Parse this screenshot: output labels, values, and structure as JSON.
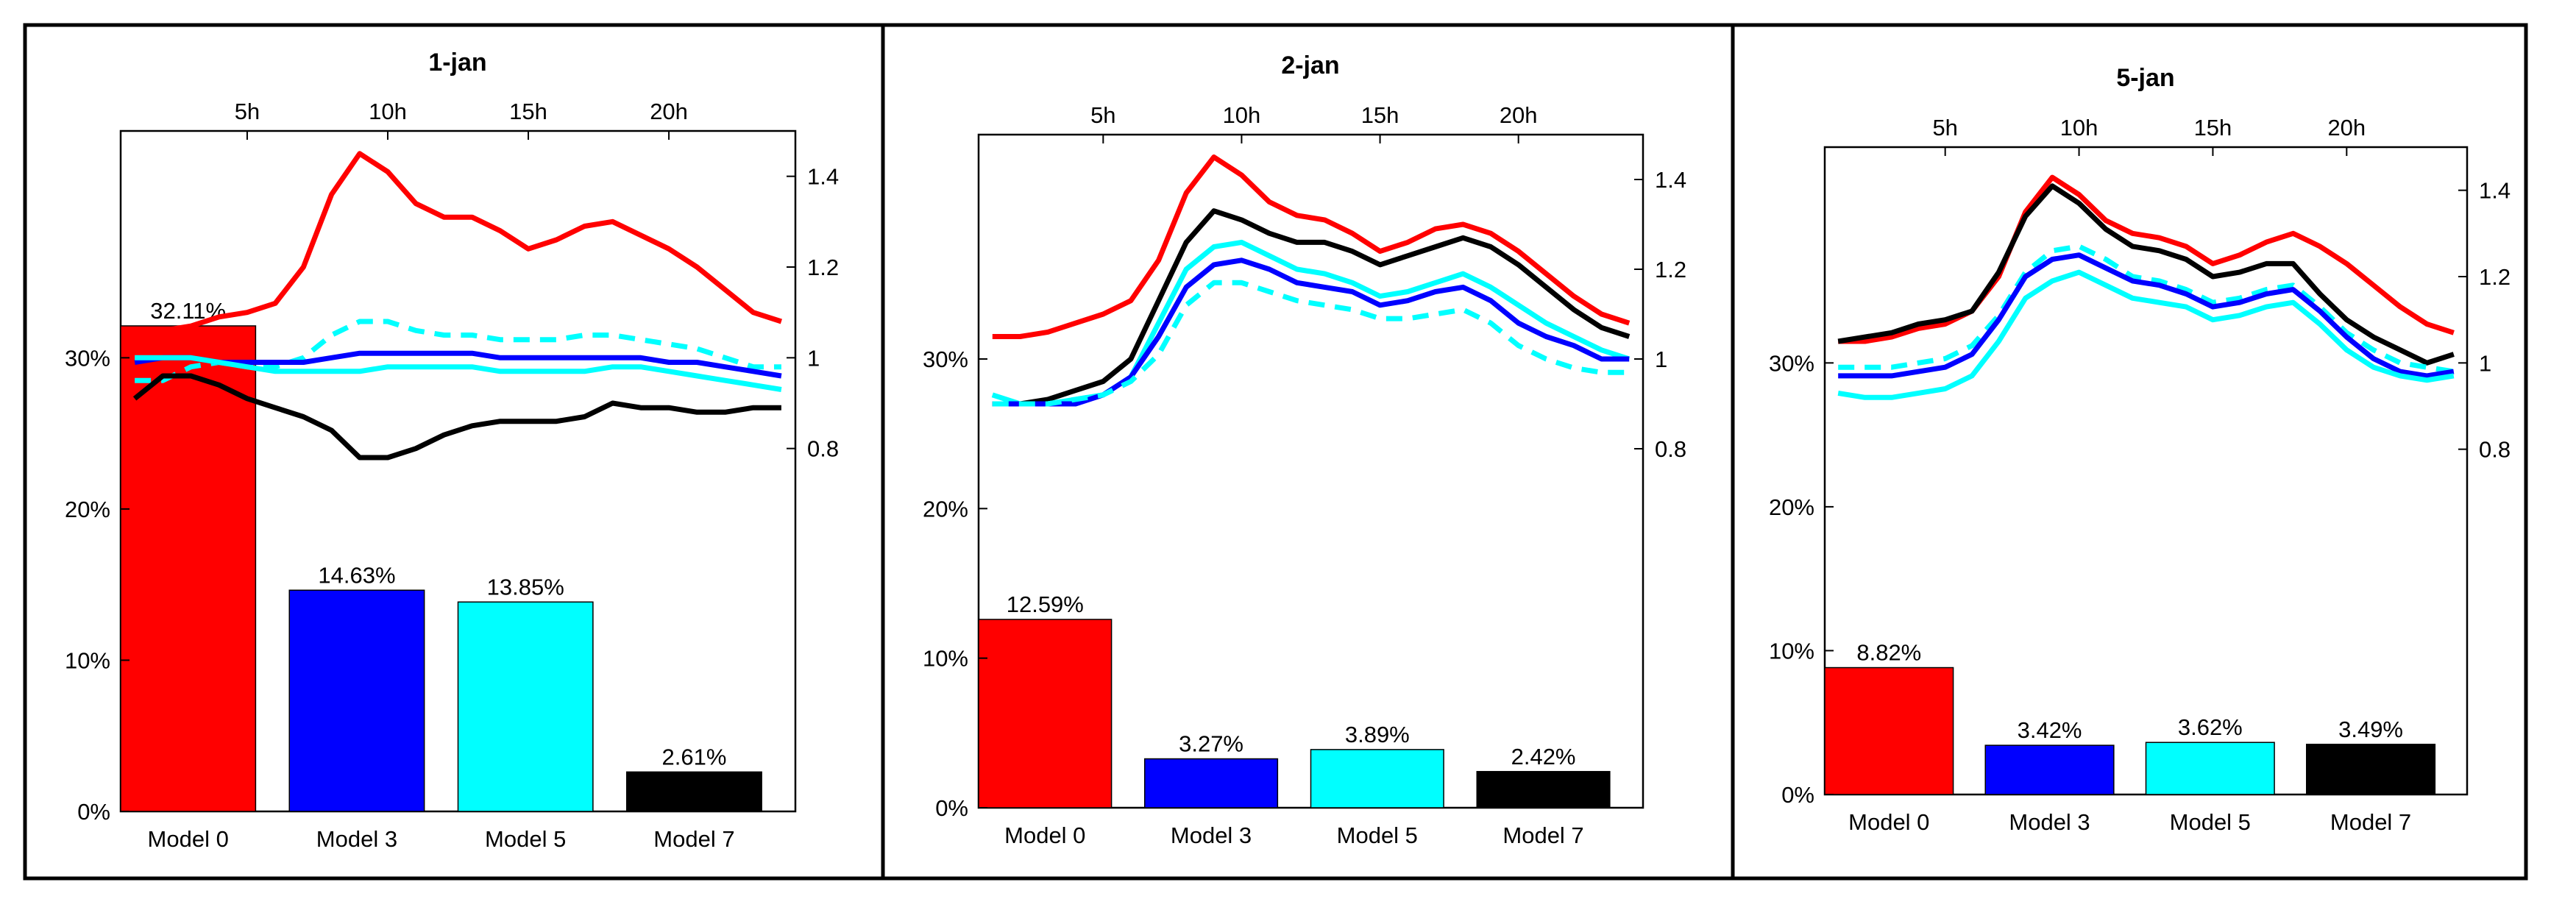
{
  "chart_data": [
    {
      "type": "bar",
      "title": "1-jan",
      "categories": [
        "Model 0",
        "Model 3",
        "Model 5",
        "Model 7"
      ],
      "values": [
        32.11,
        14.63,
        13.85,
        2.61
      ],
      "value_labels": [
        "32.11%",
        "14.63%",
        "13.85%",
        "2.61%"
      ],
      "bar_colors": [
        "#ff0000",
        "#0000ff",
        "#00ffff",
        "#000000"
      ],
      "ylim": [
        0,
        45
      ],
      "yticks": [
        0,
        10,
        20,
        30
      ],
      "ytick_labels": [
        "0%",
        "10%",
        "20%",
        "30%"
      ],
      "overlay": {
        "type": "line",
        "x": [
          1,
          2,
          3,
          4,
          5,
          6,
          7,
          8,
          9,
          10,
          11,
          12,
          13,
          14,
          15,
          16,
          17,
          18,
          19,
          20,
          21,
          22,
          23,
          24
        ],
        "ylim": [
          0,
          1.5
        ],
        "yticks": [
          0.8,
          1,
          1.2,
          1.4
        ],
        "ytick_labels": [
          "0.8",
          "1",
          "1.2",
          "1.4"
        ],
        "xticks": [
          5,
          10,
          15,
          20
        ],
        "xtick_labels": [
          "5h",
          "10h",
          "15h",
          "20h"
        ],
        "series": [
          {
            "color": "#ff0000",
            "style": "solid",
            "values": [
              1.06,
              1.06,
              1.07,
              1.09,
              1.1,
              1.12,
              1.2,
              1.36,
              1.45,
              1.41,
              1.34,
              1.31,
              1.31,
              1.28,
              1.24,
              1.26,
              1.29,
              1.3,
              1.27,
              1.24,
              1.2,
              1.15,
              1.1,
              1.08
            ]
          },
          {
            "color": "#00ffff",
            "style": "dashed",
            "values": [
              0.95,
              0.95,
              0.98,
              0.99,
              0.98,
              0.98,
              1.0,
              1.05,
              1.08,
              1.08,
              1.06,
              1.05,
              1.05,
              1.04,
              1.04,
              1.04,
              1.05,
              1.05,
              1.04,
              1.03,
              1.02,
              1.0,
              0.98,
              0.98
            ]
          },
          {
            "color": "#0000ff",
            "style": "solid",
            "values": [
              0.99,
              1.0,
              1.0,
              0.99,
              0.99,
              0.99,
              0.99,
              1.0,
              1.01,
              1.01,
              1.01,
              1.01,
              1.01,
              1.0,
              1.0,
              1.0,
              1.0,
              1.0,
              1.0,
              0.99,
              0.99,
              0.98,
              0.97,
              0.96
            ]
          },
          {
            "color": "#00ffff",
            "style": "solid",
            "values": [
              1.0,
              1.0,
              1.0,
              0.99,
              0.98,
              0.97,
              0.97,
              0.97,
              0.97,
              0.98,
              0.98,
              0.98,
              0.98,
              0.97,
              0.97,
              0.97,
              0.97,
              0.98,
              0.98,
              0.97,
              0.96,
              0.95,
              0.94,
              0.93
            ]
          },
          {
            "color": "#000000",
            "style": "solid",
            "values": [
              0.91,
              0.96,
              0.96,
              0.94,
              0.91,
              0.89,
              0.87,
              0.84,
              0.78,
              0.78,
              0.8,
              0.83,
              0.85,
              0.86,
              0.86,
              0.86,
              0.87,
              0.9,
              0.89,
              0.89,
              0.88,
              0.88,
              0.89,
              0.89
            ]
          }
        ]
      }
    },
    {
      "type": "bar",
      "title": "2-jan",
      "categories": [
        "Model 0",
        "Model 3",
        "Model 5",
        "Model 7"
      ],
      "values": [
        12.59,
        3.27,
        3.89,
        2.42
      ],
      "value_labels": [
        "12.59%",
        "3.27%",
        "3.89%",
        "2.42%"
      ],
      "bar_colors": [
        "#ff0000",
        "#0000ff",
        "#00ffff",
        "#000000"
      ],
      "ylim": [
        0,
        45
      ],
      "yticks": [
        0,
        10,
        20,
        30
      ],
      "ytick_labels": [
        "0%",
        "10%",
        "20%",
        "30%"
      ],
      "overlay": {
        "type": "line",
        "x": [
          1,
          2,
          3,
          4,
          5,
          6,
          7,
          8,
          9,
          10,
          11,
          12,
          13,
          14,
          15,
          16,
          17,
          18,
          19,
          20,
          21,
          22,
          23,
          24
        ],
        "ylim": [
          0,
          1.5
        ],
        "yticks": [
          0.8,
          1,
          1.2,
          1.4
        ],
        "ytick_labels": [
          "0.8",
          "1",
          "1.2",
          "1.4"
        ],
        "xticks": [
          5,
          10,
          15,
          20
        ],
        "xtick_labels": [
          "5h",
          "10h",
          "15h",
          "20h"
        ],
        "series": [
          {
            "color": "#ff0000",
            "style": "solid",
            "values": [
              1.05,
              1.05,
              1.06,
              1.08,
              1.1,
              1.13,
              1.22,
              1.37,
              1.45,
              1.41,
              1.35,
              1.32,
              1.31,
              1.28,
              1.24,
              1.26,
              1.29,
              1.3,
              1.28,
              1.24,
              1.19,
              1.14,
              1.1,
              1.08
            ]
          },
          {
            "color": "#000000",
            "style": "solid",
            "values": [
              0.9,
              0.9,
              0.91,
              0.93,
              0.95,
              1.0,
              1.13,
              1.26,
              1.33,
              1.31,
              1.28,
              1.26,
              1.26,
              1.24,
              1.21,
              1.23,
              1.25,
              1.27,
              1.25,
              1.21,
              1.16,
              1.11,
              1.07,
              1.05
            ]
          },
          {
            "color": "#00ffff",
            "style": "solid",
            "values": [
              0.92,
              0.9,
              0.9,
              0.91,
              0.92,
              0.96,
              1.08,
              1.2,
              1.25,
              1.26,
              1.23,
              1.2,
              1.19,
              1.17,
              1.14,
              1.15,
              1.17,
              1.19,
              1.16,
              1.12,
              1.08,
              1.05,
              1.02,
              1.0
            ]
          },
          {
            "color": "#0000ff",
            "style": "solid",
            "values": [
              0.9,
              0.9,
              0.9,
              0.9,
              0.92,
              0.96,
              1.05,
              1.16,
              1.21,
              1.22,
              1.2,
              1.17,
              1.16,
              1.15,
              1.12,
              1.13,
              1.15,
              1.16,
              1.13,
              1.08,
              1.05,
              1.03,
              1.0,
              1.0
            ]
          },
          {
            "color": "#00ffff",
            "style": "dashed",
            "values": [
              0.9,
              0.9,
              0.9,
              0.91,
              0.92,
              0.95,
              1.01,
              1.12,
              1.17,
              1.17,
              1.15,
              1.13,
              1.12,
              1.11,
              1.09,
              1.09,
              1.1,
              1.11,
              1.08,
              1.03,
              1.0,
              0.98,
              0.97,
              0.97
            ]
          }
        ]
      }
    },
    {
      "type": "bar",
      "title": "5-jan",
      "categories": [
        "Model 0",
        "Model 3",
        "Model 5",
        "Model 7"
      ],
      "values": [
        8.82,
        3.42,
        3.62,
        3.49
      ],
      "value_labels": [
        "8.82%",
        "3.42%",
        "3.62%",
        "3.49%"
      ],
      "bar_colors": [
        "#ff0000",
        "#0000ff",
        "#00ffff",
        "#000000"
      ],
      "ylim": [
        0,
        45
      ],
      "yticks": [
        0,
        10,
        20,
        30
      ],
      "ytick_labels": [
        "0%",
        "10%",
        "20%",
        "30%"
      ],
      "overlay": {
        "type": "line",
        "x": [
          1,
          2,
          3,
          4,
          5,
          6,
          7,
          8,
          9,
          10,
          11,
          12,
          13,
          14,
          15,
          16,
          17,
          18,
          19,
          20,
          21,
          22,
          23,
          24
        ],
        "ylim": [
          0,
          1.5
        ],
        "yticks": [
          0.8,
          1,
          1.2,
          1.4
        ],
        "ytick_labels": [
          "0.8",
          "1",
          "1.2",
          "1.4"
        ],
        "xticks": [
          5,
          10,
          15,
          20
        ],
        "xtick_labels": [
          "5h",
          "10h",
          "15h",
          "20h"
        ],
        "series": [
          {
            "color": "#ff0000",
            "style": "solid",
            "values": [
              1.05,
              1.05,
              1.06,
              1.08,
              1.09,
              1.12,
              1.2,
              1.35,
              1.43,
              1.39,
              1.33,
              1.3,
              1.29,
              1.27,
              1.23,
              1.25,
              1.28,
              1.3,
              1.27,
              1.23,
              1.18,
              1.13,
              1.09,
              1.07
            ]
          },
          {
            "color": "#000000",
            "style": "solid",
            "values": [
              1.05,
              1.06,
              1.07,
              1.09,
              1.1,
              1.12,
              1.21,
              1.34,
              1.41,
              1.37,
              1.31,
              1.27,
              1.26,
              1.24,
              1.2,
              1.21,
              1.23,
              1.23,
              1.16,
              1.1,
              1.06,
              1.03,
              1.0,
              1.02
            ]
          },
          {
            "color": "#00ffff",
            "style": "dashed",
            "values": [
              0.99,
              0.99,
              0.99,
              1.0,
              1.01,
              1.04,
              1.11,
              1.21,
              1.26,
              1.27,
              1.24,
              1.2,
              1.19,
              1.17,
              1.14,
              1.15,
              1.17,
              1.18,
              1.13,
              1.07,
              1.03,
              1.0,
              0.99,
              0.98
            ]
          },
          {
            "color": "#0000ff",
            "style": "solid",
            "values": [
              0.97,
              0.97,
              0.97,
              0.98,
              0.99,
              1.02,
              1.1,
              1.2,
              1.24,
              1.25,
              1.22,
              1.19,
              1.18,
              1.16,
              1.13,
              1.14,
              1.16,
              1.17,
              1.12,
              1.06,
              1.01,
              0.98,
              0.97,
              0.98
            ]
          },
          {
            "color": "#00ffff",
            "style": "solid",
            "values": [
              0.93,
              0.92,
              0.92,
              0.93,
              0.94,
              0.97,
              1.05,
              1.15,
              1.19,
              1.21,
              1.18,
              1.15,
              1.14,
              1.13,
              1.1,
              1.11,
              1.13,
              1.14,
              1.09,
              1.03,
              0.99,
              0.97,
              0.96,
              0.97
            ]
          }
        ]
      }
    }
  ]
}
